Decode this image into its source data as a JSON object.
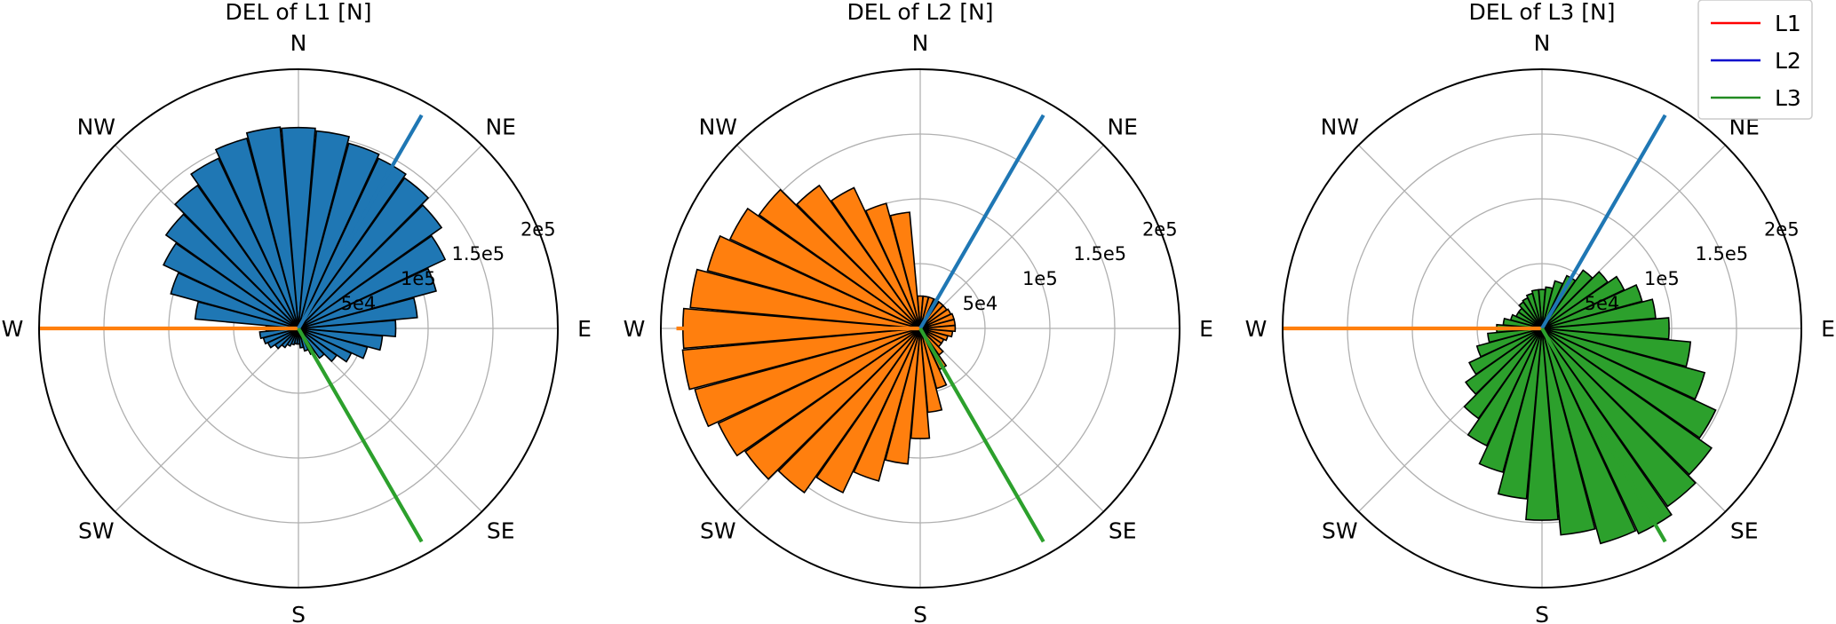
{
  "chart_data": [
    {
      "type": "polar-bar",
      "title": "DEL of L1 [N]",
      "fill_color": "#1f77b4",
      "rlim": [
        0,
        200000
      ],
      "rticks": [
        50000,
        100000,
        150000,
        200000
      ],
      "rtick_labels": [
        "5e4",
        "1e5",
        "1.5e5",
        "2e5"
      ],
      "directions": [
        "N",
        "NE",
        "E",
        "SE",
        "S",
        "SW",
        "W",
        "NW"
      ],
      "bar_angles_deg": [
        0,
        10,
        20,
        30,
        40,
        50,
        60,
        70,
        80,
        90,
        100,
        110,
        120,
        130,
        140,
        150,
        160,
        170,
        180,
        190,
        200,
        210,
        220,
        230,
        240,
        250,
        260,
        270,
        280,
        290,
        300,
        310,
        320,
        330,
        340,
        350
      ],
      "values": [
        155000,
        153000,
        148000,
        145000,
        142000,
        135000,
        125000,
        110000,
        92000,
        75000,
        65000,
        55000,
        45000,
        36000,
        28000,
        22000,
        18000,
        15000,
        12000,
        12000,
        13000,
        15000,
        18000,
        22000,
        26000,
        28000,
        30000,
        25000,
        80000,
        102000,
        115000,
        125000,
        135000,
        145000,
        152000,
        156000
      ],
      "lines": [
        {
          "name": "L1",
          "angle_deg": 270,
          "length": 200000,
          "color": "#ff7f0e"
        },
        {
          "name": "L2",
          "angle_deg": 30,
          "length": 190000,
          "color": "#1f77b4"
        },
        {
          "name": "L3",
          "angle_deg": 150,
          "length": 190000,
          "color": "#2ca02c"
        }
      ]
    },
    {
      "type": "polar-bar",
      "title": "DEL of L2 [N]",
      "fill_color": "#ff7f0e",
      "rlim": [
        0,
        200000
      ],
      "rticks": [
        50000,
        100000,
        150000,
        200000
      ],
      "rtick_labels": [
        "5e4",
        "1e5",
        "1.5e5",
        "2e5"
      ],
      "directions": [
        "N",
        "NE",
        "E",
        "SE",
        "S",
        "SW",
        "W",
        "NW"
      ],
      "bar_angles_deg": [
        0,
        10,
        20,
        30,
        40,
        50,
        60,
        70,
        80,
        90,
        100,
        110,
        120,
        130,
        140,
        150,
        160,
        170,
        180,
        190,
        200,
        210,
        220,
        230,
        240,
        250,
        260,
        270,
        280,
        290,
        300,
        310,
        320,
        330,
        340,
        350
      ],
      "values": [
        25000,
        25000,
        25000,
        25000,
        25000,
        25000,
        26000,
        27000,
        27000,
        27000,
        25000,
        22000,
        20000,
        20000,
        25000,
        35000,
        48000,
        65000,
        85000,
        105000,
        122000,
        140000,
        155000,
        165000,
        172000,
        180000,
        184000,
        183000,
        178000,
        170000,
        162000,
        152000,
        135000,
        120000,
        100000,
        90000
      ],
      "lines": [
        {
          "name": "L1",
          "angle_deg": 270,
          "length": 188000,
          "color": "#ff7f0e"
        },
        {
          "name": "L2",
          "angle_deg": 30,
          "length": 190000,
          "color": "#1f77b4"
        },
        {
          "name": "L3",
          "angle_deg": 150,
          "length": 190000,
          "color": "#2ca02c"
        }
      ]
    },
    {
      "type": "polar-bar",
      "title": "DEL of L3 [N]",
      "fill_color": "#2ca02c",
      "rlim": [
        0,
        200000
      ],
      "rticks": [
        50000,
        100000,
        150000,
        200000
      ],
      "rtick_labels": [
        "5e4",
        "1e5",
        "1.5e5",
        "2e5"
      ],
      "directions": [
        "N",
        "NE",
        "E",
        "SE",
        "S",
        "SW",
        "W",
        "NW"
      ],
      "bar_angles_deg": [
        0,
        10,
        20,
        30,
        40,
        50,
        60,
        70,
        80,
        90,
        100,
        110,
        120,
        130,
        140,
        150,
        160,
        170,
        180,
        190,
        200,
        210,
        220,
        230,
        240,
        250,
        260,
        270,
        280,
        290,
        300,
        310,
        320,
        330,
        340,
        350
      ],
      "values": [
        30000,
        32000,
        38000,
        45000,
        55000,
        62000,
        70000,
        80000,
        88000,
        98000,
        115000,
        130000,
        148000,
        160000,
        168000,
        175000,
        172000,
        160000,
        148000,
        132000,
        115000,
        100000,
        85000,
        72000,
        62000,
        52000,
        42000,
        35000,
        30000,
        25000,
        22000,
        22000,
        25000,
        26000,
        28000,
        30000
      ],
      "lines": [
        {
          "name": "L1",
          "angle_deg": 270,
          "length": 200000,
          "color": "#ff7f0e"
        },
        {
          "name": "L2",
          "angle_deg": 30,
          "length": 190000,
          "color": "#1f77b4"
        },
        {
          "name": "L3",
          "angle_deg": 150,
          "length": 190000,
          "color": "#2ca02c"
        }
      ]
    }
  ],
  "legend": {
    "position": "top-right",
    "items": [
      {
        "label": "L1",
        "color": "#ff0000"
      },
      {
        "label": "L2",
        "color": "#0000cc"
      },
      {
        "label": "L3",
        "color": "#228b22"
      }
    ]
  }
}
